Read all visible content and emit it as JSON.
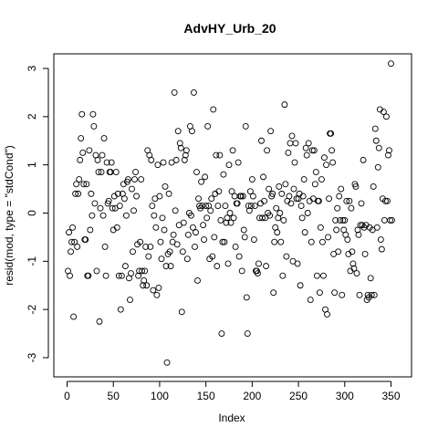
{
  "chart_data": {
    "type": "scatter",
    "title": "AdvHY_Urb_20",
    "xlabel": "Index",
    "ylabel": "resid(mod, type = \"stdCond\")",
    "xlim": [
      0,
      350
    ],
    "ylim": [
      -3,
      3
    ],
    "x_ticks": [
      "0",
      "50",
      "100",
      "150",
      "200",
      "250",
      "300",
      "350"
    ],
    "y_ticks": [
      "-3",
      "-2",
      "-1",
      "0",
      "1",
      "2",
      "3"
    ],
    "grid": false,
    "legend": "none",
    "marker": "open-circle",
    "points": [
      [
        1,
        -1.2
      ],
      [
        2,
        -0.4
      ],
      [
        3,
        -1.3
      ],
      [
        4,
        -0.8
      ],
      [
        5,
        -0.6
      ],
      [
        6,
        -0.3
      ],
      [
        7,
        -2.15
      ],
      [
        8,
        -0.6
      ],
      [
        9,
        0.4
      ],
      [
        10,
        0.6
      ],
      [
        11,
        -0.7
      ],
      [
        12,
        0.4
      ],
      [
        13,
        0.7
      ],
      [
        14,
        1.1
      ],
      [
        15,
        1.55
      ],
      [
        16,
        2.05
      ],
      [
        17,
        1.25
      ],
      [
        18,
        0.6
      ],
      [
        19,
        -0.55
      ],
      [
        20,
        -0.55
      ],
      [
        21,
        0.6
      ],
      [
        22,
        -1.3
      ],
      [
        23,
        -1.3
      ],
      [
        24,
        1.3
      ],
      [
        25,
        -0.35
      ],
      [
        26,
        0.4
      ],
      [
        27,
        -0.05
      ],
      [
        28,
        2.05
      ],
      [
        29,
        1.8
      ],
      [
        30,
        0.2
      ],
      [
        31,
        1.2
      ],
      [
        32,
        -1.2
      ],
      [
        33,
        1.1
      ],
      [
        34,
        0.85
      ],
      [
        35,
        -2.25
      ],
      [
        36,
        0.1
      ],
      [
        37,
        0.85
      ],
      [
        38,
        1.2
      ],
      [
        39,
        -0.05
      ],
      [
        40,
        1.55
      ],
      [
        41,
        -0.7
      ],
      [
        42,
        -1.3
      ],
      [
        43,
        1.05
      ],
      [
        44,
        0.2
      ],
      [
        45,
        0.25
      ],
      [
        46,
        0.85
      ],
      [
        47,
        0.85
      ],
      [
        48,
        1.05
      ],
      [
        49,
        0.1
      ],
      [
        50,
        -0.35
      ],
      [
        51,
        0.35
      ],
      [
        52,
        0.1
      ],
      [
        53,
        0.85
      ],
      [
        54,
        -0.3
      ],
      [
        55,
        0.4
      ],
      [
        56,
        -1.3
      ],
      [
        57,
        0.15
      ],
      [
        58,
        -2.0
      ],
      [
        59,
        -1.3
      ],
      [
        60,
        0.4
      ],
      [
        61,
        0.6
      ],
      [
        62,
        0.3
      ],
      [
        63,
        -1.1
      ],
      [
        64,
        -0.05
      ],
      [
        65,
        0.65
      ],
      [
        66,
        0.7
      ],
      [
        67,
        -1.35
      ],
      [
        68,
        -1.8
      ],
      [
        69,
        -1.25
      ],
      [
        70,
        0.5
      ],
      [
        71,
        -0.8
      ],
      [
        72,
        0.05
      ],
      [
        73,
        0.7
      ],
      [
        74,
        0.85
      ],
      [
        75,
        0.35
      ],
      [
        76,
        -0.65
      ],
      [
        77,
        -1.3
      ],
      [
        78,
        -1.2
      ],
      [
        79,
        -0.6
      ],
      [
        80,
        0.7
      ],
      [
        81,
        -1.2
      ],
      [
        82,
        -1.5
      ],
      [
        83,
        -1.4
      ],
      [
        84,
        -1.2
      ],
      [
        85,
        -0.7
      ],
      [
        86,
        -1.5
      ],
      [
        87,
        1.3
      ],
      [
        88,
        -0.9
      ],
      [
        89,
        1.2
      ],
      [
        90,
        -0.7
      ],
      [
        91,
        1.1
      ],
      [
        92,
        0.15
      ],
      [
        93,
        -1.6
      ],
      [
        94,
        -0.05
      ],
      [
        95,
        0.3
      ],
      [
        96,
        -0.3
      ],
      [
        97,
        -1.7
      ],
      [
        98,
        1.0
      ],
      [
        99,
        -1.55
      ],
      [
        100,
        0.35
      ],
      [
        101,
        -0.6
      ],
      [
        102,
        -0.95
      ],
      [
        103,
        -0.1
      ],
      [
        104,
        1.05
      ],
      [
        105,
        -0.35
      ],
      [
        106,
        0.55
      ],
      [
        107,
        -1.1
      ],
      [
        108,
        -3.1
      ],
      [
        109,
        -0.85
      ],
      [
        110,
        0.4
      ],
      [
        111,
        -0.8
      ],
      [
        112,
        -1.1
      ],
      [
        113,
        1.05
      ],
      [
        114,
        -0.6
      ],
      [
        115,
        -0.45
      ],
      [
        116,
        2.5
      ],
      [
        117,
        0.05
      ],
      [
        118,
        1.1
      ],
      [
        119,
        -0.65
      ],
      [
        120,
        1.7
      ],
      [
        121,
        -0.25
      ],
      [
        122,
        1.45
      ],
      [
        123,
        1.35
      ],
      [
        124,
        -2.05
      ],
      [
        125,
        -0.8
      ],
      [
        126,
        -0.2
      ],
      [
        127,
        1.1
      ],
      [
        128,
        1.2
      ],
      [
        129,
        1.3
      ],
      [
        130,
        -0.95
      ],
      [
        131,
        -0.45
      ],
      [
        132,
        0.0
      ],
      [
        133,
        1.8
      ],
      [
        134,
        -0.05
      ],
      [
        135,
        1.7
      ],
      [
        136,
        -0.3
      ],
      [
        137,
        2.5
      ],
      [
        138,
        -0.7
      ],
      [
        139,
        -0.4
      ],
      [
        140,
        0.85
      ],
      [
        141,
        -1.4
      ],
      [
        142,
        0.3
      ],
      [
        143,
        0.15
      ],
      [
        144,
        0.1
      ],
      [
        145,
        0.65
      ],
      [
        146,
        0.15
      ],
      [
        147,
        -0.25
      ],
      [
        148,
        -0.55
      ],
      [
        149,
        0.75
      ],
      [
        150,
        0.15
      ],
      [
        151,
        -0.1
      ],
      [
        152,
        1.8
      ],
      [
        153,
        0.15
      ],
      [
        154,
        -0.95
      ],
      [
        155,
        0.05
      ],
      [
        156,
        0.3
      ],
      [
        157,
        -0.9
      ],
      [
        158,
        2.15
      ],
      [
        159,
        -0.5
      ],
      [
        160,
        0.4
      ],
      [
        161,
        1.2
      ],
      [
        162,
        -1.1
      ],
      [
        163,
        0.15
      ],
      [
        164,
        0.45
      ],
      [
        165,
        1.2
      ],
      [
        166,
        -0.15
      ],
      [
        167,
        -2.5
      ],
      [
        168,
        -0.6
      ],
      [
        169,
        0.8
      ],
      [
        170,
        -0.6
      ],
      [
        171,
        0.15
      ],
      [
        172,
        -0.2
      ],
      [
        173,
        -0.1
      ],
      [
        174,
        -1.05
      ],
      [
        175,
        1.0
      ],
      [
        176,
        0.0
      ],
      [
        177,
        -0.2
      ],
      [
        178,
        0.45
      ],
      [
        179,
        1.3
      ],
      [
        180,
        -0.1
      ],
      [
        181,
        0.35
      ],
      [
        182,
        -0.7
      ],
      [
        183,
        0.2
      ],
      [
        184,
        0.2
      ],
      [
        185,
        1.05
      ],
      [
        186,
        -0.9
      ],
      [
        187,
        0.35
      ],
      [
        188,
        0.35
      ],
      [
        189,
        -1.2
      ],
      [
        190,
        0.35
      ],
      [
        191,
        -0.35
      ],
      [
        192,
        -0.5
      ],
      [
        193,
        1.8
      ],
      [
        194,
        -1.75
      ],
      [
        195,
        -2.5
      ],
      [
        196,
        0.15
      ],
      [
        197,
        0.05
      ],
      [
        198,
        0.45
      ],
      [
        199,
        0.15
      ],
      [
        200,
        0.7
      ],
      [
        201,
        0.35
      ],
      [
        202,
        -0.55
      ],
      [
        203,
        0.15
      ],
      [
        204,
        -1.2
      ],
      [
        205,
        -1.2
      ],
      [
        206,
        -1.25
      ],
      [
        207,
        -1.05
      ],
      [
        208,
        -0.1
      ],
      [
        209,
        0.2
      ],
      [
        210,
        1.5
      ],
      [
        211,
        -0.1
      ],
      [
        212,
        0.75
      ],
      [
        213,
        0.25
      ],
      [
        214,
        -0.1
      ],
      [
        215,
        -1.1
      ],
      [
        216,
        1.3
      ],
      [
        217,
        0.0
      ],
      [
        218,
        0.5
      ],
      [
        219,
        -0.05
      ],
      [
        220,
        1.7
      ],
      [
        221,
        0.35
      ],
      [
        222,
        0.4
      ],
      [
        223,
        -1.65
      ],
      [
        224,
        -0.6
      ],
      [
        225,
        -0.3
      ],
      [
        226,
        0.1
      ],
      [
        227,
        -0.4
      ],
      [
        228,
        -0.1
      ],
      [
        229,
        0.55
      ],
      [
        230,
        0.0
      ],
      [
        231,
        -0.6
      ],
      [
        232,
        0.4
      ],
      [
        233,
        -1.3
      ],
      [
        234,
        -0.15
      ],
      [
        235,
        2.25
      ],
      [
        236,
        0.6
      ],
      [
        237,
        -0.9
      ],
      [
        238,
        0.25
      ],
      [
        239,
        1.25
      ],
      [
        240,
        0.35
      ],
      [
        241,
        1.45
      ],
      [
        242,
        0.2
      ],
      [
        243,
        1.6
      ],
      [
        244,
        -1.0
      ],
      [
        245,
        0.5
      ],
      [
        246,
        1.05
      ],
      [
        247,
        1.45
      ],
      [
        248,
        0.3
      ],
      [
        249,
        -1.05
      ],
      [
        250,
        0.3
      ],
      [
        251,
        0.4
      ],
      [
        252,
        -1.5
      ],
      [
        253,
        0.15
      ],
      [
        254,
        -0.1
      ],
      [
        255,
        0.35
      ],
      [
        256,
        0.7
      ],
      [
        257,
        -0.4
      ],
      [
        258,
        1.35
      ],
      [
        259,
        1.2
      ],
      [
        260,
        0.0
      ],
      [
        261,
        1.45
      ],
      [
        262,
        0.25
      ],
      [
        263,
        -1.8
      ],
      [
        264,
        -0.6
      ],
      [
        265,
        1.3
      ],
      [
        266,
        0.3
      ],
      [
        267,
        1.3
      ],
      [
        268,
        0.6
      ],
      [
        269,
        0.85
      ],
      [
        270,
        -1.3
      ],
      [
        271,
        0.25
      ],
      [
        272,
        0.25
      ],
      [
        273,
        -1.65
      ],
      [
        274,
        -0.3
      ],
      [
        275,
        0.7
      ],
      [
        276,
        -0.6
      ],
      [
        277,
        -1.3
      ],
      [
        278,
        1.15
      ],
      [
        279,
        -2.0
      ],
      [
        280,
        1.0
      ],
      [
        281,
        -2.1
      ],
      [
        282,
        -0.5
      ],
      [
        283,
        0.3
      ],
      [
        284,
        1.65
      ],
      [
        285,
        1.65
      ],
      [
        286,
        1.3
      ],
      [
        287,
        1.05
      ],
      [
        288,
        -0.85
      ],
      [
        289,
        -1.65
      ],
      [
        290,
        -0.15
      ],
      [
        291,
        -0.35
      ],
      [
        292,
        0.1
      ],
      [
        293,
        -0.8
      ],
      [
        294,
        0.35
      ],
      [
        295,
        -0.15
      ],
      [
        296,
        0.5
      ],
      [
        297,
        -1.7
      ],
      [
        298,
        -0.15
      ],
      [
        299,
        -0.35
      ],
      [
        300,
        -0.15
      ],
      [
        301,
        -0.45
      ],
      [
        302,
        0.25
      ],
      [
        303,
        -0.55
      ],
      [
        304,
        -0.85
      ],
      [
        305,
        0.25
      ],
      [
        306,
        -1.2
      ],
      [
        307,
        0.1
      ],
      [
        308,
        -0.8
      ],
      [
        309,
        -1.05
      ],
      [
        310,
        -1.15
      ],
      [
        311,
        0.6
      ],
      [
        312,
        0.55
      ],
      [
        313,
        -1.25
      ],
      [
        314,
        -0.35
      ],
      [
        315,
        -0.45
      ],
      [
        316,
        -1.7
      ],
      [
        317,
        -0.25
      ],
      [
        318,
        0.2
      ],
      [
        319,
        -0.25
      ],
      [
        320,
        1.1
      ],
      [
        321,
        -0.3
      ],
      [
        322,
        -0.85
      ],
      [
        323,
        -0.25
      ],
      [
        324,
        -1.8
      ],
      [
        325,
        -1.7
      ],
      [
        326,
        -1.75
      ],
      [
        327,
        -0.3
      ],
      [
        328,
        -1.35
      ],
      [
        329,
        -1.7
      ],
      [
        330,
        -0.35
      ],
      [
        331,
        0.55
      ],
      [
        332,
        -1.7
      ],
      [
        333,
        1.75
      ],
      [
        334,
        1.5
      ],
      [
        335,
        -0.3
      ],
      [
        336,
        0.95
      ],
      [
        337,
        1.35
      ],
      [
        338,
        2.15
      ],
      [
        339,
        -0.55
      ],
      [
        340,
        -0.75
      ],
      [
        341,
        0.3
      ],
      [
        342,
        2.1
      ],
      [
        343,
        -0.15
      ],
      [
        344,
        0.25
      ],
      [
        345,
        2.0
      ],
      [
        346,
        0.25
      ],
      [
        347,
        1.2
      ],
      [
        348,
        1.3
      ],
      [
        349,
        -0.15
      ],
      [
        350,
        3.1
      ],
      [
        351,
        -0.15
      ]
    ]
  }
}
